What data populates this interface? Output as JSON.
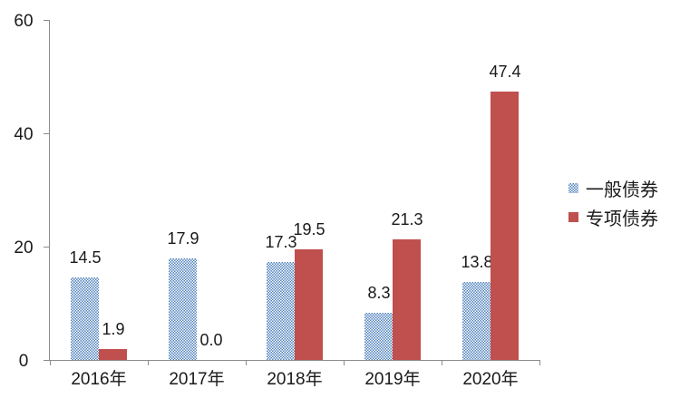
{
  "chart_data": {
    "type": "bar",
    "title": "",
    "categories": [
      "2016年",
      "2017年",
      "2018年",
      "2019年",
      "2020年"
    ],
    "series": [
      {
        "name": "一般债券",
        "color": "#4f81bd",
        "fill": "pattern-checker",
        "values": [
          14.5,
          17.9,
          17.3,
          8.3,
          13.8
        ],
        "labels": [
          "14.5",
          "17.9",
          "17.3",
          "8.3",
          "13.8"
        ]
      },
      {
        "name": "专项债券",
        "color": "#c0504d",
        "fill": "solid",
        "values": [
          1.9,
          0.0,
          19.5,
          21.3,
          47.4
        ],
        "labels": [
          "1.9",
          "0.0",
          "19.5",
          "21.3",
          "47.4"
        ]
      }
    ],
    "y_axis": {
      "min": 0,
      "max": 60,
      "tick_interval": 20,
      "ticks": [
        0,
        20,
        40,
        60
      ],
      "tick_labels": [
        "0",
        "20",
        "40",
        "60"
      ]
    },
    "x_axis": {
      "labels": [
        "2016年",
        "2017年",
        "2018年",
        "2019年",
        "2020年"
      ]
    },
    "legend": {
      "position": "right",
      "items": [
        "一般债券",
        "专项债券"
      ]
    },
    "grid": false,
    "ylim": [
      0,
      60
    ]
  },
  "colors": {
    "axis": "#8c8c8c",
    "text": "#1a1a1a",
    "background": "#ffffff",
    "series_blue": "#4f81bd",
    "series_red": "#c0504d"
  }
}
